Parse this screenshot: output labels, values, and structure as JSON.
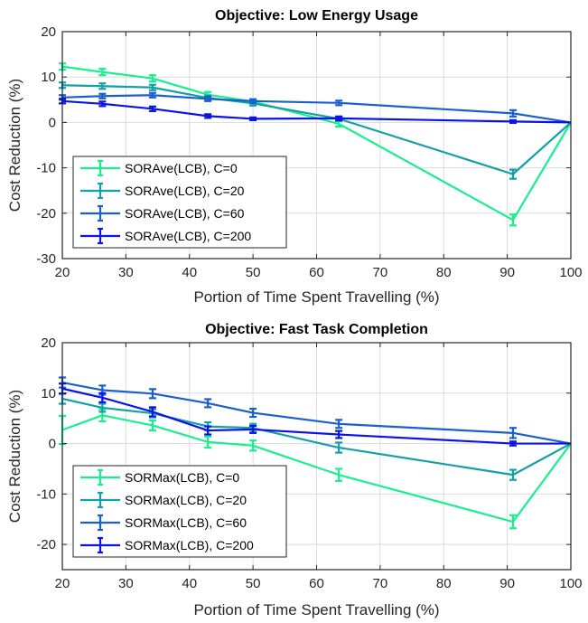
{
  "chart_data": [
    {
      "type": "line",
      "title": "Objective: Low Energy Usage",
      "xlabel": "Portion of Time Spent Travelling (%)",
      "ylabel": "Cost Reduction (%)",
      "xlim": [
        20,
        100
      ],
      "ylim": [
        -30,
        20
      ],
      "xticks": [
        20,
        30,
        40,
        50,
        60,
        70,
        80,
        90,
        100
      ],
      "yticks": [
        -30,
        -20,
        -10,
        0,
        10,
        20
      ],
      "grid": true,
      "legend_position": "bottom-left",
      "x": [
        20,
        26.3,
        34.2,
        42.9,
        50,
        63.5,
        90.9,
        100
      ],
      "series": [
        {
          "name": "SORAve(LCB), C=0",
          "color": "#17f08c",
          "values": [
            12.3,
            11.1,
            9.7,
            6.1,
            4.6,
            -0.3,
            -21.5,
            0
          ],
          "errors": [
            0.7,
            0.7,
            0.7,
            0.6,
            0.5,
            0.6,
            1.2,
            0
          ]
        },
        {
          "name": "SORAve(LCB), C=20",
          "color": "#13a0a8",
          "values": [
            8.2,
            8.0,
            7.7,
            5.4,
            4.2,
            0.8,
            -11.4,
            0
          ],
          "errors": [
            0.6,
            0.6,
            0.6,
            0.5,
            0.5,
            0.5,
            1.0,
            0
          ]
        },
        {
          "name": "SORAve(LCB), C=60",
          "color": "#1a5fd0",
          "values": [
            5.5,
            5.8,
            6.0,
            5.2,
            4.7,
            4.3,
            2.0,
            0
          ],
          "errors": [
            0.5,
            0.5,
            0.5,
            0.5,
            0.4,
            0.5,
            0.7,
            0
          ]
        },
        {
          "name": "SORAve(LCB), C=200",
          "color": "#0b14e6",
          "values": [
            4.7,
            4.1,
            3.0,
            1.4,
            0.8,
            0.9,
            0.2,
            0
          ],
          "errors": [
            0.5,
            0.5,
            0.5,
            0.4,
            0.3,
            0.4,
            0.3,
            0
          ]
        }
      ]
    },
    {
      "type": "line",
      "title": "Objective: Fast Task Completion",
      "xlabel": "Portion of Time Spent Travelling (%)",
      "ylabel": "Cost Reduction (%)",
      "xlim": [
        20,
        100
      ],
      "ylim": [
        -25,
        20
      ],
      "xticks": [
        20,
        30,
        40,
        50,
        60,
        70,
        80,
        90,
        100
      ],
      "yticks": [
        -20,
        -10,
        0,
        10,
        20
      ],
      "grid": true,
      "legend_position": "bottom-left",
      "x": [
        20,
        26.3,
        34.2,
        42.9,
        50,
        63.5,
        90.9,
        100
      ],
      "series": [
        {
          "name": "SORMax(LCB), C=0",
          "color": "#17f08c",
          "values": [
            2.7,
            5.6,
            3.6,
            0.3,
            -0.4,
            -6.2,
            -15.5,
            0
          ],
          "errors": [
            2.8,
            1.2,
            1.0,
            1.1,
            1.0,
            1.2,
            1.3,
            0
          ]
        },
        {
          "name": "SORMax(LCB), C=20",
          "color": "#13a0a8",
          "values": [
            8.9,
            7.1,
            6.0,
            3.4,
            3.1,
            -0.8,
            -6.2,
            0
          ],
          "errors": [
            1.0,
            0.8,
            0.8,
            0.8,
            0.8,
            1.0,
            1.0,
            0
          ]
        },
        {
          "name": "SORMax(LCB), C=60",
          "color": "#1a5fd0",
          "values": [
            12.1,
            10.6,
            9.9,
            8.0,
            6.1,
            3.9,
            2.1,
            0
          ],
          "errors": [
            1.0,
            0.9,
            0.9,
            0.8,
            0.8,
            0.8,
            1.0,
            0
          ]
        },
        {
          "name": "SORMax(LCB), C=200",
          "color": "#0b14e6",
          "values": [
            10.9,
            9.1,
            6.3,
            2.6,
            2.8,
            1.8,
            0.0,
            0
          ],
          "errors": [
            1.0,
            0.9,
            0.9,
            0.8,
            0.7,
            0.7,
            0.4,
            0
          ]
        }
      ]
    }
  ]
}
